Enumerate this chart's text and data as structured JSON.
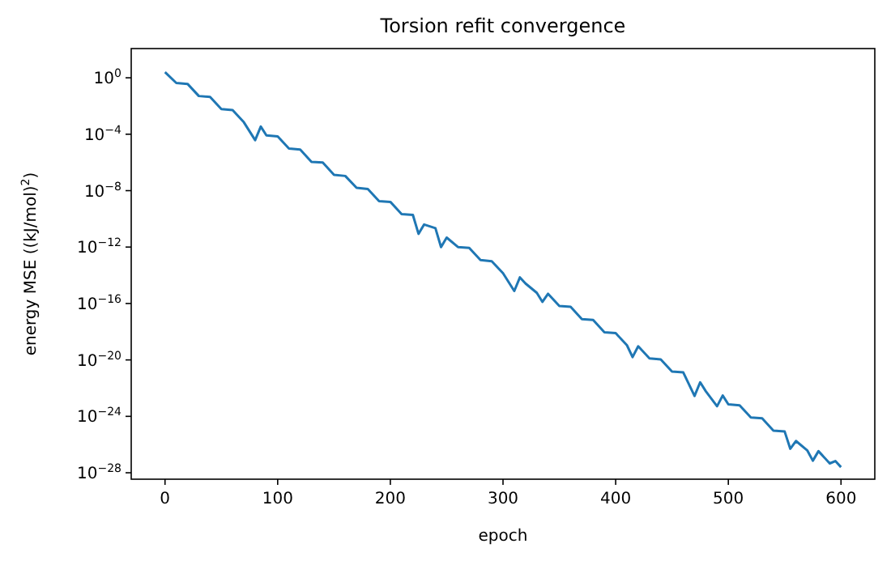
{
  "chart_data": {
    "type": "line",
    "title": "Torsion refit convergence",
    "xlabel": "epoch",
    "ylabel": "energy MSE ((kJ/mol)$^{2}$)",
    "log": "y",
    "grid": false,
    "xlim": [
      -30,
      630
    ],
    "xticks": [
      0,
      100,
      200,
      300,
      400,
      500,
      600
    ],
    "ylim": [
      3.5e-29,
      118
    ],
    "yticks": [
      {
        "value": 1,
        "label": "10$^{0}$"
      },
      {
        "value": 0.0001,
        "label": "10$^{−4}$"
      },
      {
        "value": 1e-08,
        "label": "10$^{−8}$"
      },
      {
        "value": 1e-12,
        "label": "10$^{−12}$"
      },
      {
        "value": 1e-16,
        "label": "10$^{−16}$"
      },
      {
        "value": 1e-20,
        "label": "10$^{−20}$"
      },
      {
        "value": 1e-24,
        "label": "10$^{−24}$"
      },
      {
        "value": 1e-28,
        "label": "10$^{−28}$"
      }
    ],
    "series": [
      {
        "color": "#1f77b4",
        "x": [
          0,
          10,
          20,
          30,
          40,
          50,
          60,
          70,
          80,
          85,
          90,
          100,
          110,
          120,
          130,
          140,
          150,
          160,
          170,
          180,
          190,
          200,
          210,
          220,
          225,
          230,
          240,
          245,
          250,
          260,
          270,
          280,
          290,
          300,
          310,
          315,
          320,
          330,
          335,
          340,
          350,
          360,
          370,
          380,
          390,
          400,
          410,
          415,
          420,
          430,
          440,
          450,
          460,
          470,
          475,
          480,
          490,
          495,
          500,
          510,
          520,
          530,
          540,
          550,
          555,
          560,
          570,
          575,
          580,
          590,
          595,
          600
        ],
        "values": [
          2.5,
          0.43,
          0.37,
          0.051,
          0.044,
          0.006,
          0.0051,
          0.0007,
          3.8e-05,
          0.00035,
          8.2e-05,
          7.1e-05,
          9.7e-06,
          8.3e-06,
          1.1e-06,
          9.8e-07,
          1.3e-07,
          1.1e-07,
          1.6e-08,
          1.3e-08,
          1.8e-09,
          1.6e-09,
          2.2e-10,
          1.9e-10,
          8.7e-12,
          4e-11,
          2.2e-11,
          1e-12,
          4.7e-12,
          1e-12,
          8.8e-13,
          1.2e-13,
          1e-13,
          1.4e-14,
          7.7e-16,
          7.1e-15,
          2.6e-15,
          5.7e-16,
          1.3e-16,
          4.9e-16,
          6.7e-17,
          5.8e-17,
          7.9e-18,
          6.8e-18,
          9.2e-19,
          7.9e-19,
          1.1e-19,
          1.6e-20,
          9.3e-20,
          1.3e-20,
          1.1e-20,
          1.5e-21,
          1.3e-21,
          2.8e-23,
          2.6e-22,
          6e-23,
          5.2e-24,
          3e-23,
          7.1e-24,
          6.1e-24,
          8.3e-25,
          7.2e-25,
          9.8e-26,
          8.4e-26,
          5e-27,
          1.8e-26,
          3.9e-27,
          7.2e-28,
          3.4e-27,
          4.6e-28,
          6.8e-28,
          2.5e-28
        ]
      }
    ]
  }
}
